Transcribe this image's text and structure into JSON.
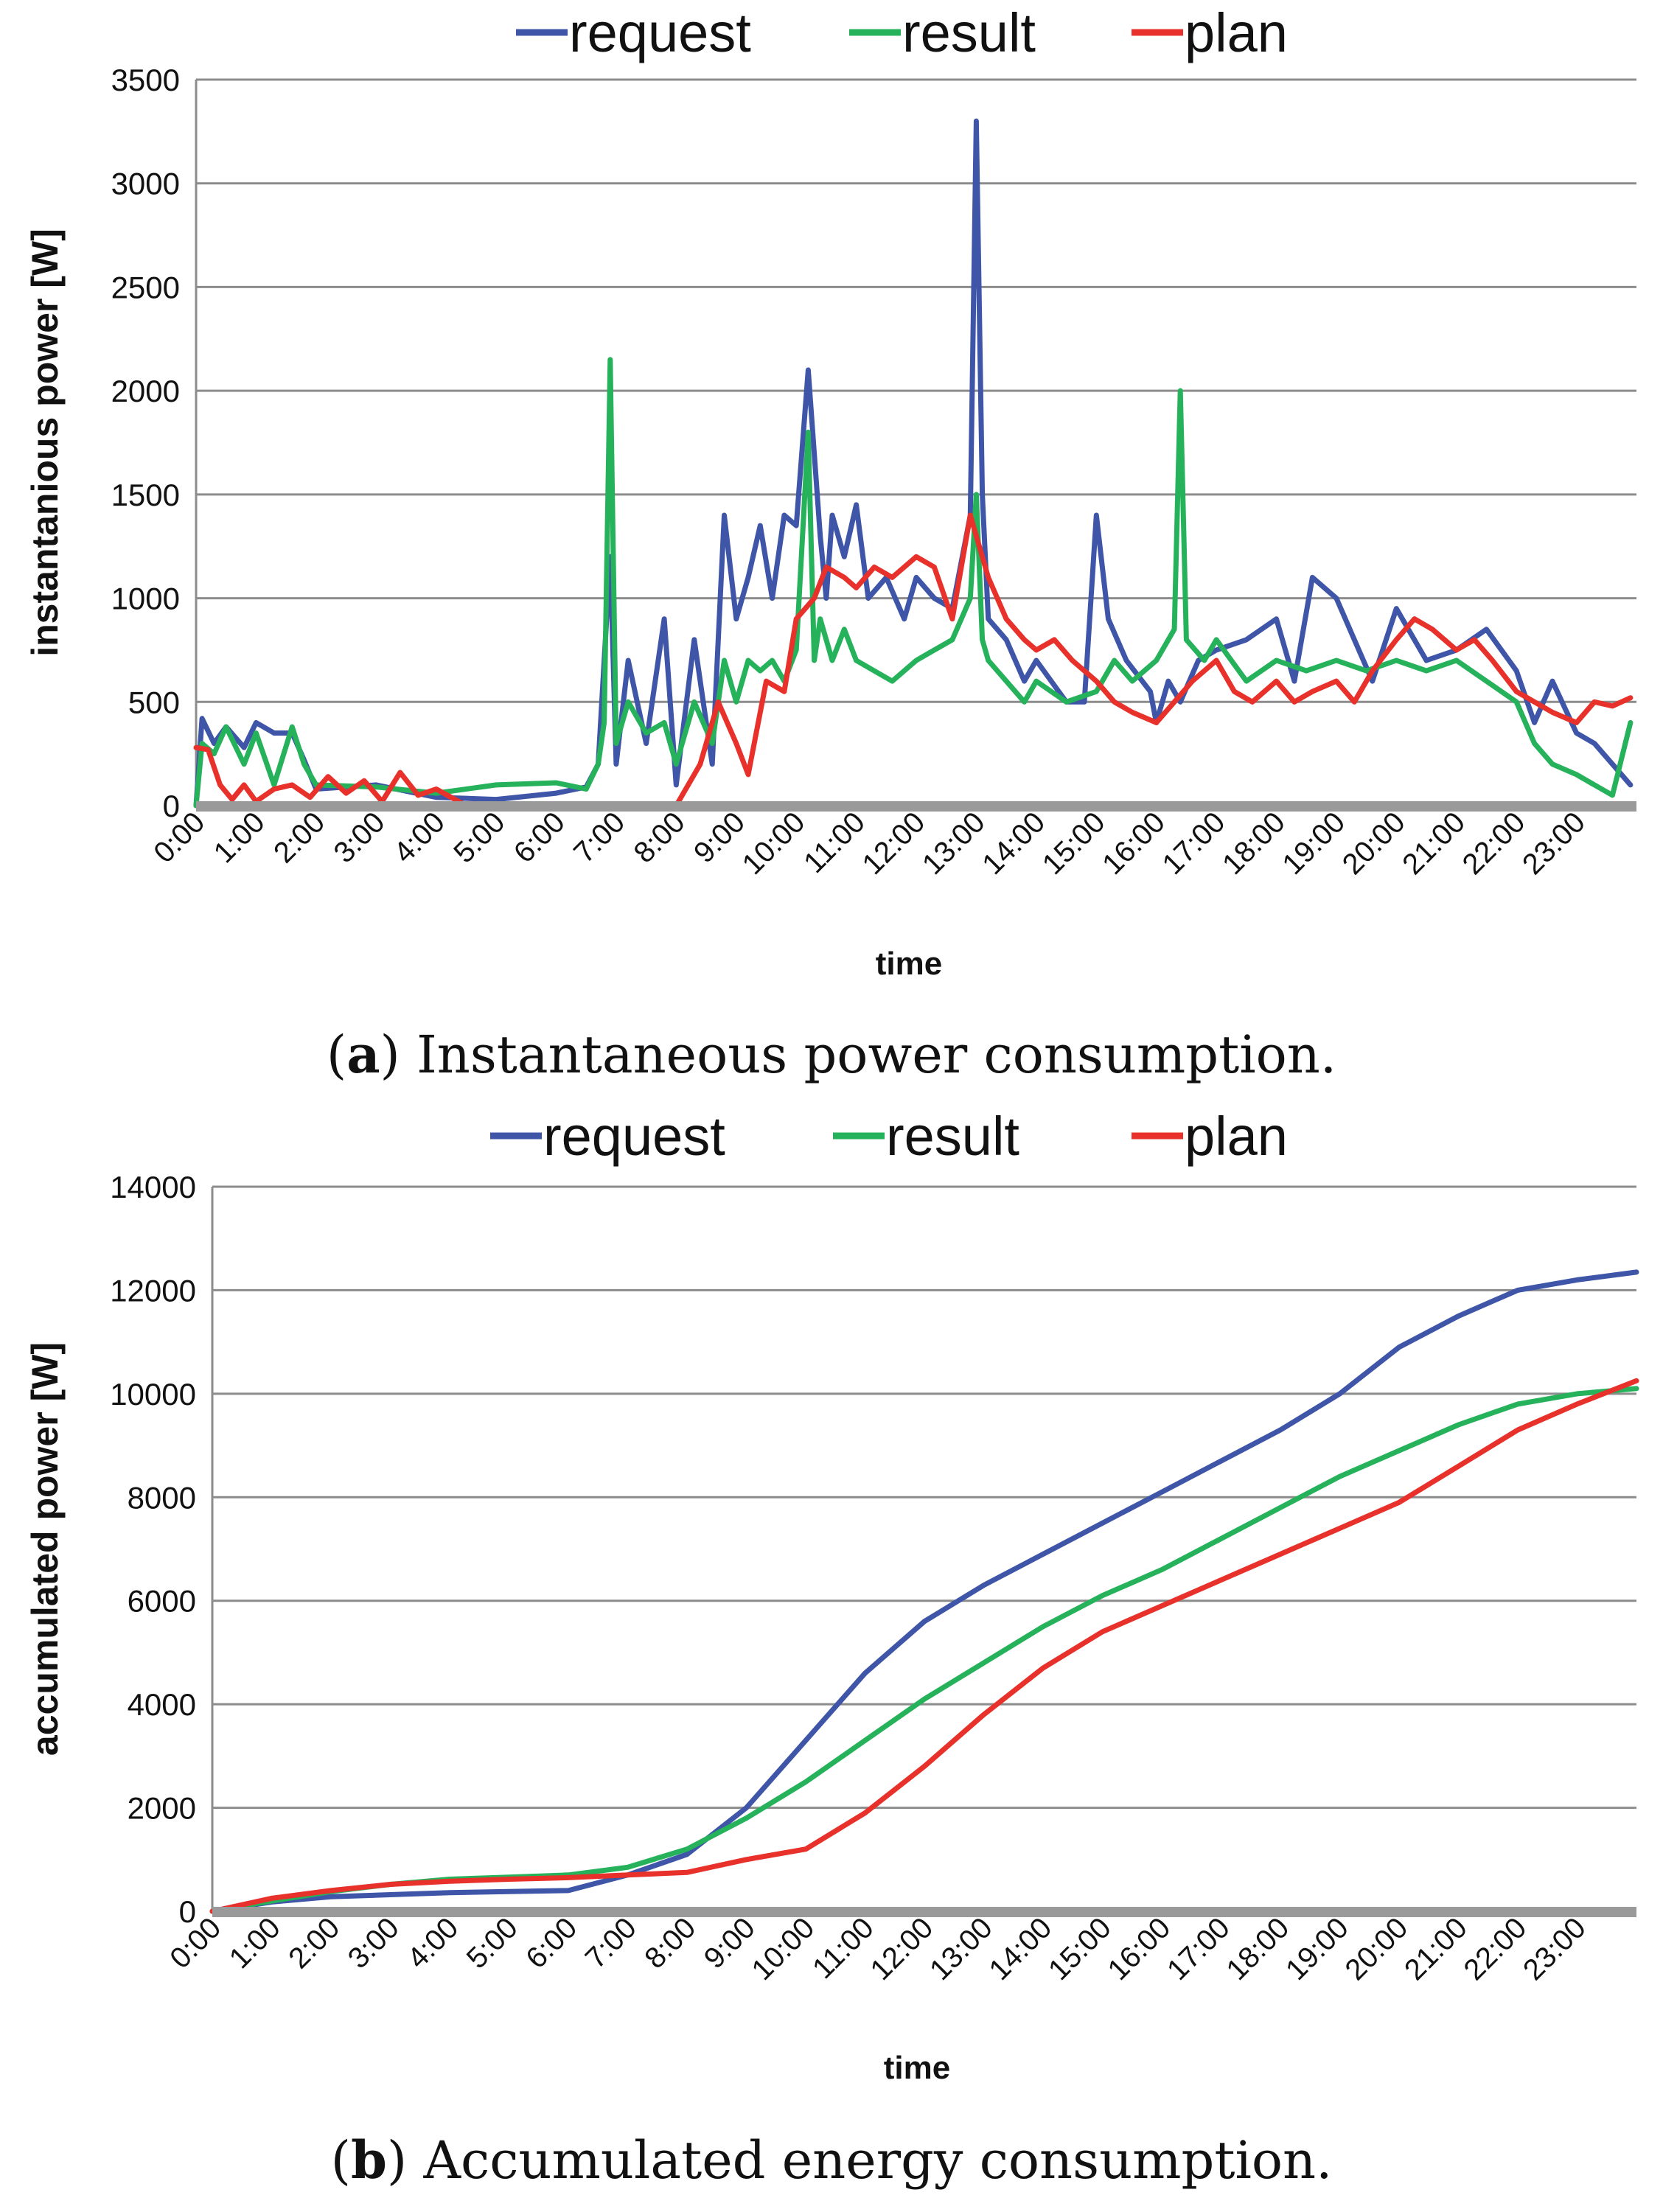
{
  "colors": {
    "request": "#3f55a8",
    "result": "#25b25b",
    "plan": "#e8312a",
    "grid": "#8c8c8c",
    "baseline": "#9a9a9a"
  },
  "chart_data": [
    {
      "id": "a",
      "type": "line",
      "caption_label": "a",
      "caption_text": "Instantaneous power consumption.",
      "ylabel": "instantanious power [W]",
      "xlabel": "time",
      "ylim": [
        0,
        3500
      ],
      "yticks": [
        "0",
        "500",
        "1000",
        "1500",
        "2000",
        "2500",
        "3000",
        "3500"
      ],
      "categories": [
        "0:00",
        "1:00",
        "2:00",
        "3:00",
        "4:00",
        "5:00",
        "6:00",
        "7:00",
        "8:00",
        "9:00",
        "10:00",
        "11:00",
        "12:00",
        "13:00",
        "14:00",
        "15:00",
        "16:00",
        "17:00",
        "18:00",
        "19:00",
        "20:00",
        "21:00",
        "22:00",
        "23:00"
      ],
      "legend": [
        "request",
        "result",
        "plan"
      ],
      "series": [
        {
          "name": "request",
          "x": [
            0,
            0.1,
            0.3,
            0.5,
            0.8,
            1.0,
            1.3,
            1.6,
            1.8,
            2.0,
            3.0,
            4.0,
            5.0,
            6.0,
            6.5,
            6.7,
            6.9,
            7.0,
            7.2,
            7.5,
            7.8,
            8.0,
            8.3,
            8.6,
            8.8,
            9.0,
            9.2,
            9.4,
            9.6,
            9.8,
            10.0,
            10.2,
            10.4,
            10.5,
            10.6,
            10.8,
            11.0,
            11.2,
            11.5,
            11.8,
            12.0,
            12.3,
            12.6,
            12.9,
            13.0,
            13.1,
            13.2,
            13.5,
            13.8,
            14.0,
            14.5,
            14.8,
            15.0,
            15.2,
            15.5,
            15.9,
            16.0,
            16.2,
            16.4,
            16.7,
            17.0,
            17.5,
            18.0,
            18.3,
            18.6,
            19.0,
            19.3,
            19.6,
            20.0,
            20.5,
            21.0,
            21.5,
            22.0,
            22.3,
            22.6,
            23.0,
            23.3,
            23.6,
            23.9
          ],
          "values": [
            0,
            420,
            300,
            380,
            280,
            400,
            350,
            350,
            220,
            80,
            100,
            40,
            30,
            60,
            90,
            200,
            1200,
            200,
            700,
            300,
            900,
            100,
            800,
            200,
            1400,
            900,
            1100,
            1350,
            1000,
            1400,
            1350,
            2100,
            1300,
            1000,
            1400,
            1200,
            1450,
            1000,
            1100,
            900,
            1100,
            1000,
            950,
            1400,
            3300,
            1500,
            900,
            800,
            600,
            700,
            500,
            500,
            1400,
            900,
            700,
            550,
            400,
            600,
            500,
            700,
            750,
            800,
            900,
            600,
            1100,
            1000,
            800,
            600,
            950,
            700,
            750,
            850,
            650,
            400,
            600,
            350,
            300,
            200,
            100
          ]
        },
        {
          "name": "result",
          "x": [
            0,
            0.1,
            0.3,
            0.5,
            0.8,
            1.0,
            1.3,
            1.6,
            1.8,
            2.0,
            3.0,
            4.0,
            5.0,
            6.0,
            6.5,
            6.7,
            6.8,
            6.9,
            7.0,
            7.2,
            7.5,
            7.8,
            8.0,
            8.3,
            8.6,
            8.8,
            9.0,
            9.2,
            9.4,
            9.6,
            9.8,
            10.0,
            10.2,
            10.3,
            10.4,
            10.6,
            10.8,
            11.0,
            11.3,
            11.6,
            12.0,
            12.3,
            12.6,
            12.9,
            13.0,
            13.1,
            13.2,
            13.5,
            13.8,
            14.0,
            14.5,
            15.0,
            15.3,
            15.6,
            16.0,
            16.3,
            16.4,
            16.5,
            16.8,
            17.0,
            17.5,
            18.0,
            18.5,
            19.0,
            19.5,
            20.0,
            20.5,
            21.0,
            21.5,
            22.0,
            22.3,
            22.6,
            23.0,
            23.3,
            23.6,
            23.9
          ],
          "values": [
            0,
            300,
            250,
            380,
            200,
            350,
            100,
            380,
            200,
            100,
            90,
            60,
            100,
            110,
            80,
            200,
            400,
            2150,
            300,
            500,
            350,
            400,
            200,
            500,
            300,
            700,
            500,
            700,
            650,
            700,
            600,
            750,
            1800,
            700,
            900,
            700,
            850,
            700,
            650,
            600,
            700,
            750,
            800,
            1000,
            1500,
            800,
            700,
            600,
            500,
            600,
            500,
            550,
            700,
            600,
            700,
            850,
            2000,
            800,
            700,
            800,
            600,
            700,
            650,
            700,
            650,
            700,
            650,
            700,
            600,
            500,
            300,
            200,
            150,
            100,
            50,
            400
          ]
        },
        {
          "name": "plan",
          "x": [
            0,
            0.2,
            0.4,
            0.6,
            0.8,
            1.0,
            1.3,
            1.6,
            1.9,
            2.2,
            2.5,
            2.8,
            3.1,
            3.4,
            3.7,
            4.0,
            4.5,
            5.0,
            5.5,
            6.0,
            6.5,
            7.0,
            7.5,
            8.0,
            8.4,
            8.7,
            9.0,
            9.2,
            9.5,
            9.8,
            10.0,
            10.3,
            10.5,
            10.8,
            11.0,
            11.3,
            11.6,
            12.0,
            12.3,
            12.6,
            12.9,
            13.0,
            13.2,
            13.5,
            13.8,
            14.0,
            14.3,
            14.6,
            15.0,
            15.3,
            15.6,
            16.0,
            16.3,
            16.6,
            17.0,
            17.3,
            17.6,
            18.0,
            18.3,
            18.6,
            19.0,
            19.3,
            19.6,
            20.0,
            20.3,
            20.6,
            21.0,
            21.3,
            21.6,
            22.0,
            22.3,
            22.6,
            23.0,
            23.3,
            23.6,
            23.9
          ],
          "values": [
            280,
            270,
            100,
            30,
            100,
            20,
            80,
            100,
            40,
            140,
            60,
            120,
            20,
            160,
            50,
            80,
            0,
            0,
            0,
            0,
            0,
            0,
            0,
            0,
            200,
            500,
            300,
            150,
            600,
            550,
            900,
            1000,
            1150,
            1100,
            1050,
            1150,
            1100,
            1200,
            1150,
            900,
            1400,
            1300,
            1100,
            900,
            800,
            750,
            800,
            700,
            600,
            500,
            450,
            400,
            500,
            600,
            700,
            550,
            500,
            600,
            500,
            550,
            600,
            500,
            650,
            800,
            900,
            850,
            750,
            800,
            700,
            550,
            500,
            450,
            400,
            500,
            480,
            520
          ]
        }
      ]
    },
    {
      "id": "b",
      "type": "line",
      "caption_label": "b",
      "caption_text": "Accumulated energy consumption.",
      "ylabel": "accumulated power [W]",
      "xlabel": "time",
      "ylim": [
        0,
        14000
      ],
      "yticks": [
        "0",
        "2000",
        "4000",
        "6000",
        "8000",
        "10000",
        "12000",
        "14000"
      ],
      "categories": [
        "0:00",
        "1:00",
        "2:00",
        "3:00",
        "4:00",
        "5:00",
        "6:00",
        "7:00",
        "8:00",
        "9:00",
        "10:00",
        "11:00",
        "12:00",
        "13:00",
        "14:00",
        "15:00",
        "16:00",
        "17:00",
        "18:00",
        "19:00",
        "20:00",
        "21:00",
        "22:00",
        "23:00"
      ],
      "legend": [
        "request",
        "result",
        "plan"
      ],
      "series": [
        {
          "name": "request",
          "x": [
            0,
            1,
            2,
            3,
            4,
            5,
            6,
            7,
            8,
            9,
            10,
            11,
            12,
            13,
            14,
            15,
            16,
            17,
            18,
            19,
            20,
            21,
            22,
            23,
            24
          ],
          "values": [
            0,
            180,
            280,
            320,
            360,
            380,
            400,
            700,
            1100,
            2000,
            3300,
            4600,
            5600,
            6300,
            6900,
            7500,
            8100,
            8700,
            9300,
            10000,
            10900,
            11500,
            12000,
            12200,
            12350
          ]
        },
        {
          "name": "result",
          "x": [
            0,
            1,
            2,
            3,
            4,
            5,
            6,
            7,
            8,
            9,
            10,
            11,
            12,
            13,
            14,
            15,
            16,
            17,
            18,
            19,
            20,
            21,
            22,
            23,
            24
          ],
          "values": [
            0,
            200,
            380,
            520,
            620,
            660,
            700,
            850,
            1200,
            1800,
            2500,
            3300,
            4100,
            4800,
            5500,
            6100,
            6600,
            7200,
            7800,
            8400,
            8900,
            9400,
            9800,
            10000,
            10100
          ]
        },
        {
          "name": "plan",
          "x": [
            0,
            1,
            2,
            3,
            4,
            5,
            6,
            7,
            8,
            9,
            10,
            11,
            12,
            13,
            14,
            15,
            16,
            17,
            18,
            19,
            20,
            21,
            22,
            23,
            24
          ],
          "values": [
            0,
            250,
            400,
            520,
            580,
            620,
            650,
            700,
            750,
            1000,
            1200,
            1900,
            2800,
            3800,
            4700,
            5400,
            5900,
            6400,
            6900,
            7400,
            7900,
            8600,
            9300,
            9800,
            10250
          ]
        }
      ]
    }
  ]
}
